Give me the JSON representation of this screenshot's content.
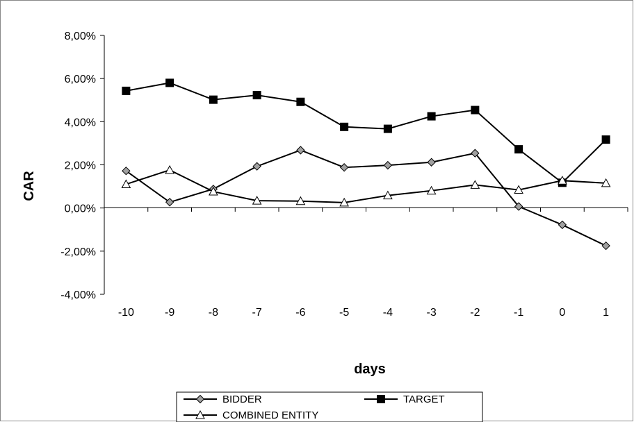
{
  "chart_data": {
    "type": "line",
    "categories": [
      "-10",
      "-9",
      "-8",
      "-7",
      "-6",
      "-5",
      "-4",
      "-3",
      "-2",
      "-1",
      "0",
      "1"
    ],
    "xlabel": "days",
    "ylabel": "CAR",
    "ylim": [
      -0.04,
      0.08
    ],
    "yticks": [
      {
        "value": 0.08,
        "label": "8,00%"
      },
      {
        "value": 0.06,
        "label": "6,00%"
      },
      {
        "value": 0.04,
        "label": "4,00%"
      },
      {
        "value": 0.02,
        "label": "2,00%"
      },
      {
        "value": 0.0,
        "label": "0,00%"
      },
      {
        "value": -0.02,
        "label": "-2,00%"
      },
      {
        "value": -0.04,
        "label": "-4,00%"
      }
    ],
    "grid": false,
    "legend_position": "bottom",
    "series": [
      {
        "name": "BIDDER",
        "marker": "diamond",
        "marker_color": "#a0a0a0",
        "values": [
          0.0172,
          0.0027,
          0.0088,
          0.0193,
          0.0268,
          0.0188,
          0.0198,
          0.0212,
          0.0254,
          0.0007,
          -0.0078,
          -0.0175
        ]
      },
      {
        "name": "TARGET",
        "marker": "square",
        "marker_color": "#000000",
        "values": [
          0.0543,
          0.058,
          0.0502,
          0.0523,
          0.0492,
          0.0376,
          0.0367,
          0.0425,
          0.0454,
          0.0272,
          0.0117,
          0.0317
        ]
      },
      {
        "name": "COMBINED ENTITY",
        "marker": "triangle",
        "marker_color": "#ffffff",
        "values": [
          0.011,
          0.0176,
          0.0076,
          0.0034,
          0.0032,
          0.0025,
          0.0058,
          0.008,
          0.0107,
          0.0084,
          0.0127,
          0.0115
        ]
      }
    ]
  }
}
